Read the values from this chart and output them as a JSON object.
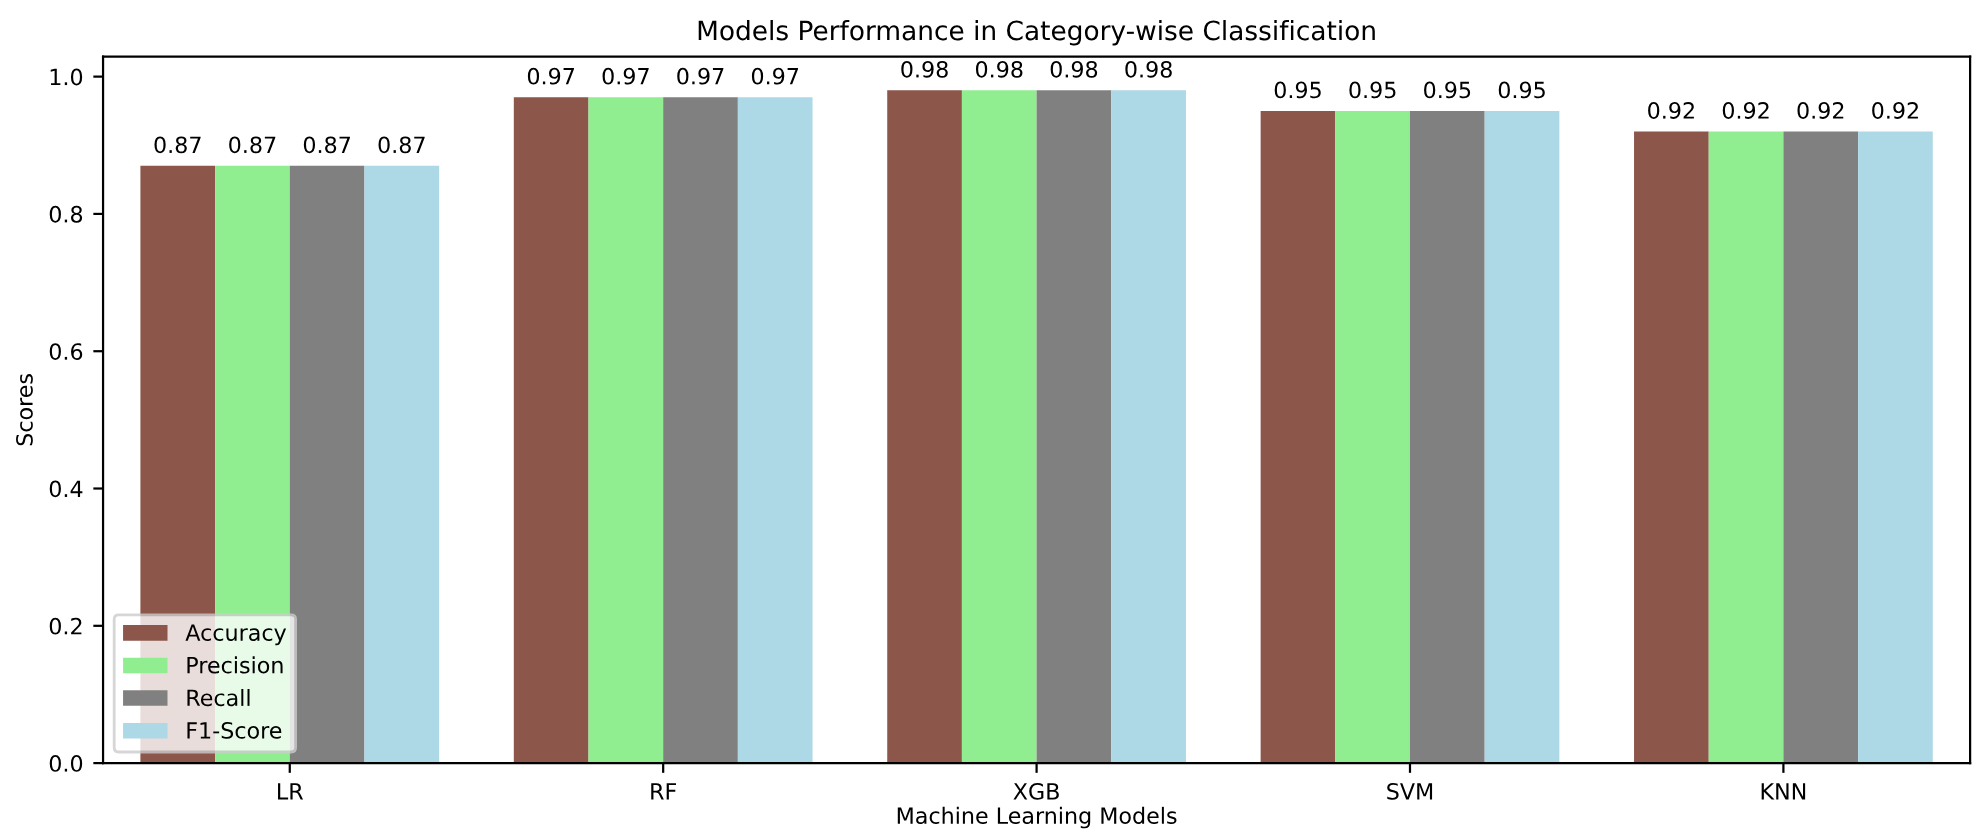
{
  "chart_data": {
    "type": "bar",
    "title": "Models Performance in Category-wise Classification",
    "xlabel": "Machine Learning Models",
    "ylabel": "Scores",
    "categories": [
      "LR",
      "RF",
      "XGB",
      "SVM",
      "KNN"
    ],
    "series": [
      {
        "name": "Accuracy",
        "color": "#8c564b",
        "values": [
          0.87,
          0.97,
          0.98,
          0.95,
          0.92
        ]
      },
      {
        "name": "Precision",
        "color": "#90ee90",
        "values": [
          0.87,
          0.97,
          0.98,
          0.95,
          0.92
        ]
      },
      {
        "name": "Recall",
        "color": "#808080",
        "values": [
          0.87,
          0.97,
          0.98,
          0.95,
          0.92
        ]
      },
      {
        "name": "F1-Score",
        "color": "#add8e6",
        "values": [
          0.87,
          0.97,
          0.98,
          0.95,
          0.92
        ]
      }
    ],
    "ylim": [
      0,
      1.029
    ],
    "yticks": [
      {
        "value": 0,
        "label": "0.0"
      },
      0.2,
      0.4,
      0.6,
      0.8,
      {
        "value": 1,
        "label": "1.0"
      }
    ],
    "data_labels": true,
    "legend": "bottom left",
    "grid": false
  }
}
